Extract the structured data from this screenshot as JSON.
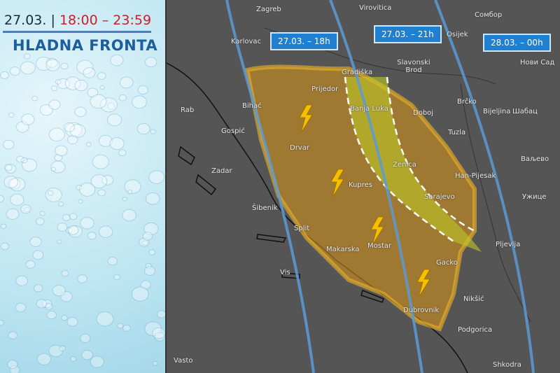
{
  "header": {
    "date": "27.03.",
    "separator": "|",
    "time": "18:00 – 23:59",
    "title": "HLADNA FRONTA"
  },
  "time_labels": [
    "27.03. – 18h",
    "27.03. – 21h",
    "28.03. – 00h"
  ],
  "cities": [
    "Zagreb",
    "Virovitica",
    "Сомбор",
    "Karlovac",
    "Osijek",
    "Нови Сад",
    "Slavonski Brod",
    "Gradiška",
    "Prijedor",
    "Bihać",
    "Banja Luka",
    "Doboj",
    "Brčko",
    "Bijeljina",
    "Шабац",
    "Rab",
    "Gospić",
    "Drvar",
    "Tuzla",
    "Zenica",
    "Han-Pijesak",
    "Ваљево",
    "Zadar",
    "Kupres",
    "Sarajevo",
    "Ужице",
    "Šibenik",
    "Split",
    "Mostar",
    "Pljevlja",
    "Makarska",
    "Gacko",
    "Vis",
    "Nikšić",
    "Dubrovnik",
    "Podgorica",
    "Vasto",
    "Shkodra"
  ]
}
